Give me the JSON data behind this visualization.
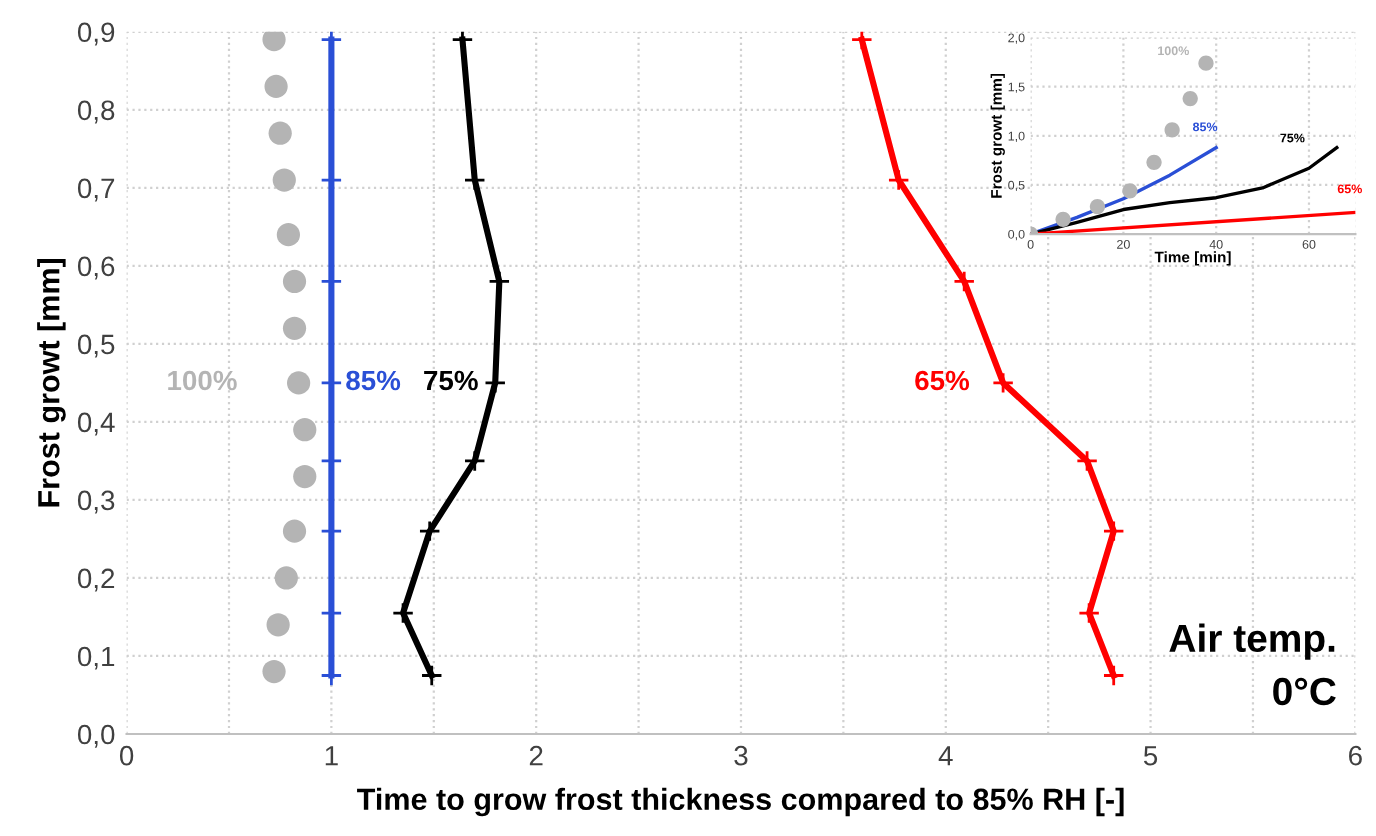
{
  "chart_data": [
    {
      "type": "line",
      "xlabel": "Time to grow frost thickness compared to 85% RH [-]",
      "ylabel": "Frost growt [mm]",
      "xlim": [
        0,
        6
      ],
      "ylim": [
        0,
        0.9
      ],
      "xticks": [
        0,
        {
          "value": 0.5,
          "label": null
        },
        1,
        {
          "value": 1.5,
          "label": null
        },
        2,
        {
          "value": 2.5,
          "label": null
        },
        3,
        {
          "value": 3.5,
          "label": null
        },
        4,
        {
          "value": 4.5,
          "label": null
        },
        5,
        {
          "value": 5.5,
          "label": null
        },
        6
      ],
      "yticks": [
        {
          "value": 0,
          "label": "0,0"
        },
        {
          "value": 0.1,
          "label": "0,1"
        },
        {
          "value": 0.2,
          "label": "0,2"
        },
        {
          "value": 0.3,
          "label": "0,3"
        },
        {
          "value": 0.4,
          "label": "0,4"
        },
        {
          "value": 0.5,
          "label": "0,5"
        },
        {
          "value": 0.6,
          "label": "0,6"
        },
        {
          "value": 0.7,
          "label": "0,7"
        },
        {
          "value": 0.8,
          "label": "0,8"
        },
        {
          "value": 0.9,
          "label": "0,9"
        }
      ],
      "grid": true,
      "legend": false,
      "series": [
        {
          "name": "100%",
          "type": "scatter",
          "marker": "circle",
          "color": "#b4b4b4",
          "x": [
            0.72,
            0.73,
            0.75,
            0.77,
            0.79,
            0.82,
            0.82,
            0.84,
            0.87,
            0.87,
            0.82,
            0.78,
            0.74,
            0.72
          ],
          "values": [
            0.89,
            0.83,
            0.77,
            0.71,
            0.64,
            0.58,
            0.52,
            0.45,
            0.39,
            0.33,
            0.26,
            0.2,
            0.14,
            0.08
          ]
        },
        {
          "name": "85%",
          "marker": "cross",
          "color": "#2a4fd6",
          "x": [
            1,
            1,
            1,
            1,
            1,
            1,
            1,
            1
          ],
          "values": [
            0.89,
            0.71,
            0.58,
            0.45,
            0.35,
            0.26,
            0.155,
            0.075
          ]
        },
        {
          "name": "75%",
          "marker": "cross",
          "color": "#000000",
          "x": [
            1.64,
            1.7,
            1.82,
            1.8,
            1.7,
            1.48,
            1.35,
            1.49
          ],
          "values": [
            0.89,
            0.71,
            0.58,
            0.45,
            0.35,
            0.26,
            0.155,
            0.075
          ]
        },
        {
          "name": "65%",
          "marker": "cross",
          "color": "#ff0000",
          "x": [
            3.59,
            3.77,
            4.09,
            4.28,
            4.69,
            4.82,
            4.7,
            4.82
          ],
          "values": [
            0.89,
            0.71,
            0.58,
            0.45,
            0.35,
            0.26,
            0.155,
            0.075
          ]
        }
      ],
      "annotations": [
        "Air temp.\n0°C"
      ]
    },
    {
      "type": "line",
      "xlabel": "Time [min]",
      "ylabel": "Frost growt [mm]",
      "xlim": [
        0,
        70
      ],
      "ylim": [
        0,
        2.0
      ],
      "xticks": [
        0,
        20,
        40,
        60
      ],
      "yticks": [
        {
          "value": 0,
          "label": "0,0"
        },
        {
          "value": 0.5,
          "label": "0,5"
        },
        {
          "value": 1.0,
          "label": "1,0"
        },
        {
          "value": 1.5,
          "label": "1,5"
        },
        {
          "value": 2.0,
          "label": "2,0"
        }
      ],
      "grid": true,
      "legend": false,
      "series": [
        {
          "name": "100%",
          "type": "scatter",
          "marker": "circle",
          "color": "#b4b4b4",
          "x": [
            0,
            7,
            14.4,
            21.4,
            26.6,
            30.5,
            34.4,
            37.8
          ],
          "values": [
            0,
            0.15,
            0.28,
            0.44,
            0.73,
            1.06,
            1.38,
            1.74
          ]
        },
        {
          "name": "85%",
          "marker": "none",
          "color": "#2a4fd6",
          "x": [
            0,
            10,
            20,
            30,
            40
          ],
          "values": [
            0,
            0.17,
            0.36,
            0.6,
            0.88
          ]
        },
        {
          "name": "75%",
          "marker": "none",
          "color": "#000000",
          "x": [
            0,
            10,
            20,
            30,
            40,
            50,
            60,
            66
          ],
          "values": [
            0,
            0.12,
            0.25,
            0.32,
            0.37,
            0.47,
            0.67,
            0.88
          ]
        },
        {
          "name": "65%",
          "marker": "none",
          "color": "#ff0000",
          "x": [
            0,
            70
          ],
          "values": [
            0,
            0.22
          ]
        }
      ]
    }
  ]
}
